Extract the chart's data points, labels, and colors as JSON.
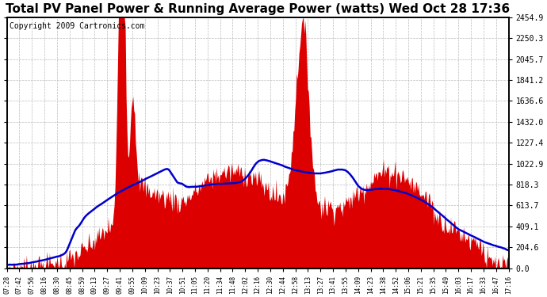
{
  "title": "Total PV Panel Power & Running Average Power (watts) Wed Oct 28 17:36",
  "copyright": "Copyright 2009 Cartronics.com",
  "yticks": [
    0.0,
    204.6,
    409.1,
    613.7,
    818.3,
    1022.9,
    1227.4,
    1432.0,
    1636.6,
    1841.2,
    2045.7,
    2250.3,
    2454.9
  ],
  "ymax": 2454.9,
  "ymin": 0.0,
  "fill_color": "#dd0000",
  "line_color": "#0000cc",
  "grid_color": "#bbbbbb",
  "background_color": "#ffffff",
  "title_fontsize": 11,
  "copyright_fontsize": 7,
  "xtick_labels": [
    "07:28",
    "07:42",
    "07:56",
    "08:16",
    "08:30",
    "08:45",
    "08:59",
    "09:13",
    "09:27",
    "09:41",
    "09:55",
    "10:09",
    "10:23",
    "10:37",
    "10:51",
    "11:05",
    "11:20",
    "11:34",
    "11:48",
    "12:02",
    "12:16",
    "12:30",
    "12:44",
    "12:58",
    "13:13",
    "13:27",
    "13:41",
    "13:55",
    "14:09",
    "14:23",
    "14:38",
    "14:52",
    "15:06",
    "15:21",
    "15:35",
    "15:49",
    "16:03",
    "16:17",
    "16:33",
    "16:47",
    "17:16"
  ]
}
